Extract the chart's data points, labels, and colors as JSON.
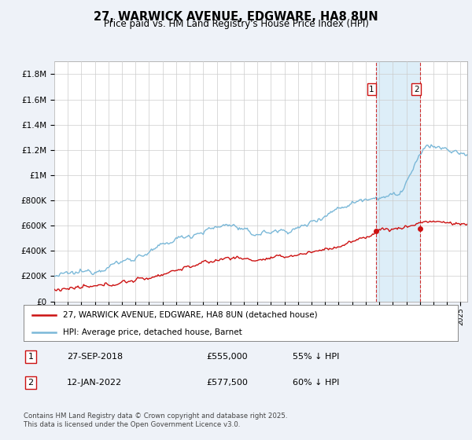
{
  "title": "27, WARWICK AVENUE, EDGWARE, HA8 8UN",
  "subtitle": "Price paid vs. HM Land Registry's House Price Index (HPI)",
  "ylabel_ticks": [
    "£0",
    "£200K",
    "£400K",
    "£600K",
    "£800K",
    "£1M",
    "£1.2M",
    "£1.4M",
    "£1.6M",
    "£1.8M"
  ],
  "ylabel_vals": [
    0,
    200000,
    400000,
    600000,
    800000,
    1000000,
    1200000,
    1400000,
    1600000,
    1800000
  ],
  "ylim": [
    0,
    1900000
  ],
  "xlim_start": 1995.0,
  "xlim_end": 2025.5,
  "hpi_color": "#7ab8d8",
  "hpi_shade_color": "#ddeef8",
  "price_color": "#cc1111",
  "vline_color": "#cc1111",
  "marker1_x": 2018.74,
  "marker1_y": 555000,
  "marker2_x": 2022.04,
  "marker2_y": 577500,
  "legend_label1": "27, WARWICK AVENUE, EDGWARE, HA8 8UN (detached house)",
  "legend_label2": "HPI: Average price, detached house, Barnet",
  "annotation1_num": "1",
  "annotation1_date": "27-SEP-2018",
  "annotation1_price": "£555,000",
  "annotation1_hpi": "55% ↓ HPI",
  "annotation2_num": "2",
  "annotation2_date": "12-JAN-2022",
  "annotation2_price": "£577,500",
  "annotation2_hpi": "60% ↓ HPI",
  "footer": "Contains HM Land Registry data © Crown copyright and database right 2025.\nThis data is licensed under the Open Government Licence v3.0.",
  "background_color": "#eef2f8",
  "plot_bg_color": "#ffffff"
}
